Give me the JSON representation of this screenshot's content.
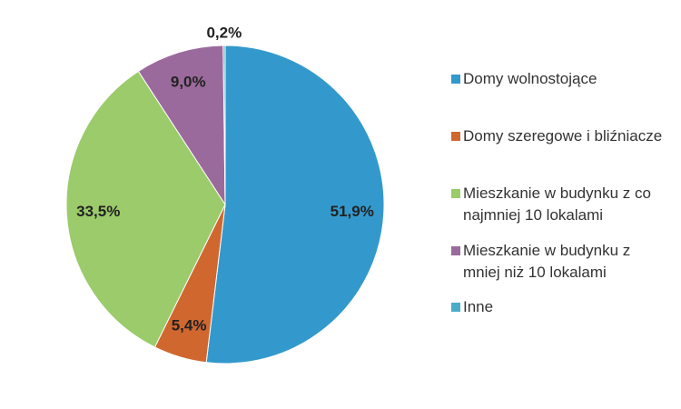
{
  "chart_data": {
    "type": "pie",
    "categories": [
      "Domy wolnostojące",
      "Domy szeregowe i bliźniacze",
      "Mieszkanie w budynku z co najmniej 10 lokalami",
      "Mieszkanie w budynku z mniej niż 10 lokalami",
      "Inne"
    ],
    "values": [
      51.9,
      5.4,
      33.5,
      9.0,
      0.2
    ],
    "value_labels": [
      "51,9%",
      "5,4%",
      "33,5%",
      "9,0%",
      "0,2%"
    ],
    "colors": [
      "#3399cc",
      "#d0672f",
      "#9bcb6a",
      "#9b6a9c",
      "#4bacc6"
    ],
    "legend": "right"
  }
}
